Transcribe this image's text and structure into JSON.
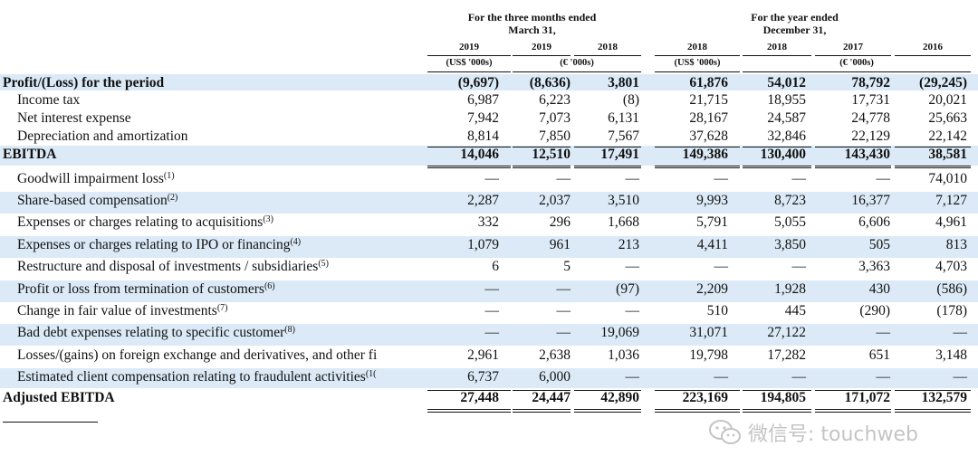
{
  "header": {
    "group_three_months": [
      "For the three months ended",
      "March 31,"
    ],
    "group_year": [
      "For the year ended",
      "December 31,"
    ],
    "years": [
      "2019",
      "2019",
      "2018",
      "2018",
      "2018",
      "2017",
      "2016"
    ],
    "unit_usd_1": "(US$ '000s)",
    "unit_eur_1": "(€ '000s)",
    "unit_usd_2": "(US$ '000s)",
    "unit_eur_2": "(€ '000s)"
  },
  "rows": [
    {
      "label": "Profit/(Loss) for the period",
      "sup": "",
      "bold": true,
      "shade": true,
      "values": [
        "(9,697)",
        "(8,636)",
        "3,801",
        "61,876",
        "54,012",
        "78,792",
        "(29,245)"
      ]
    },
    {
      "label": "Income tax",
      "sup": "",
      "values": [
        "6,987",
        "6,223",
        "(8)",
        "21,715",
        "18,955",
        "17,731",
        "20,021"
      ]
    },
    {
      "label": "Net interest expense",
      "sup": "",
      "values": [
        "7,942",
        "7,073",
        "6,131",
        "28,167",
        "24,587",
        "24,778",
        "25,663"
      ]
    },
    {
      "label": "Depreciation and amortization",
      "sup": "",
      "values": [
        "8,814",
        "7,850",
        "7,567",
        "37,628",
        "32,846",
        "22,129",
        "22,142"
      ]
    },
    {
      "label": "EBITDA",
      "sup": "",
      "bold": true,
      "shade": true,
      "values": [
        "14,046",
        "12,510",
        "17,491",
        "149,386",
        "130,400",
        "143,430",
        "38,581"
      ]
    },
    {
      "label": "Goodwill impairment loss",
      "sup": "(1)",
      "values": [
        "—",
        "—",
        "—",
        "—",
        "—",
        "—",
        "74,010"
      ]
    },
    {
      "label": "Share-based compensation",
      "sup": "(2)",
      "shade": true,
      "values": [
        "2,287",
        "2,037",
        "3,510",
        "9,993",
        "8,723",
        "16,377",
        "7,127"
      ]
    },
    {
      "label": "Expenses or charges relating to acquisitions",
      "sup": "(3)",
      "values": [
        "332",
        "296",
        "1,668",
        "5,791",
        "5,055",
        "6,606",
        "4,961"
      ]
    },
    {
      "label": "Expenses or charges relating to IPO or financing",
      "sup": "(4)",
      "shade": true,
      "values": [
        "1,079",
        "961",
        "213",
        "4,411",
        "3,850",
        "505",
        "813"
      ]
    },
    {
      "label": "Restructure and disposal of investments / subsidiaries",
      "sup": "(5)",
      "values": [
        "6",
        "5",
        "—",
        "—",
        "—",
        "3,363",
        "4,703"
      ]
    },
    {
      "label": "Profit or loss from termination of customers",
      "sup": "(6)",
      "shade": true,
      "values": [
        "—",
        "—",
        "(97)",
        "2,209",
        "1,928",
        "430",
        "(586)"
      ]
    },
    {
      "label": "Change in fair value of investments",
      "sup": "(7)",
      "values": [
        "—",
        "—",
        "—",
        "510",
        "445",
        "(290)",
        "(178)"
      ]
    },
    {
      "label": "Bad debt expenses relating to specific customer",
      "sup": "(8)",
      "shade": true,
      "values": [
        "—",
        "—",
        "19,069",
        "31,071",
        "27,122",
        "—",
        "—"
      ]
    },
    {
      "label": "Losses/(gains) on foreign exchange and derivatives, and other fi",
      "sup": "",
      "values": [
        "2,961",
        "2,638",
        "1,036",
        "19,798",
        "17,282",
        "651",
        "3,148"
      ]
    },
    {
      "label": "Estimated client compensation relating to fraudulent activities",
      "sup": "(1(",
      "shade": true,
      "values": [
        "6,737",
        "6,000",
        "—",
        "—",
        "—",
        "—",
        "—"
      ]
    },
    {
      "label": "Adjusted EBITDA",
      "sup": "",
      "bold": true,
      "values": [
        "27,448",
        "24,447",
        "42,890",
        "223,169",
        "194,805",
        "171,072",
        "132,579"
      ]
    }
  ],
  "watermark": {
    "icon": "wechat-icon",
    "text": "微信号: touchweb"
  }
}
